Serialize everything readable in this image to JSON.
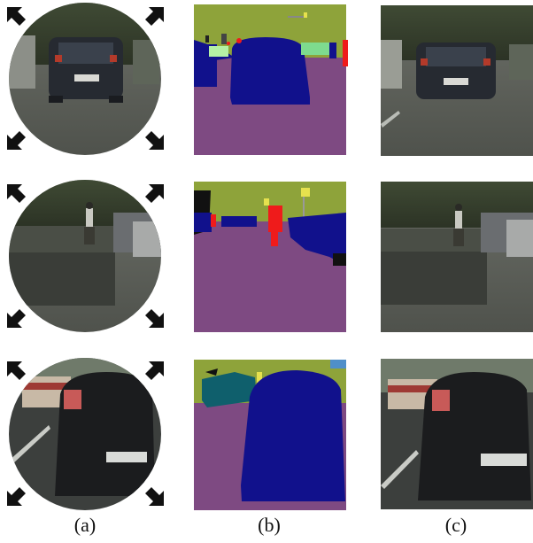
{
  "captions": [
    "(a)",
    "(b)",
    "(c)"
  ],
  "icons": {
    "arrow": "outward-corner-arrow-icon",
    "photo": "street-scene-photo",
    "segmentation": "semantic-segmentation-map"
  },
  "colors": {
    "sky_vegetation": "#8ea33a",
    "road": "#7e4a82",
    "vehicle": "#11118c",
    "person": "#ef1b1b",
    "sign": "#e6e14e",
    "truck_teal": "#0f5f6c",
    "arrow": "#111111"
  }
}
